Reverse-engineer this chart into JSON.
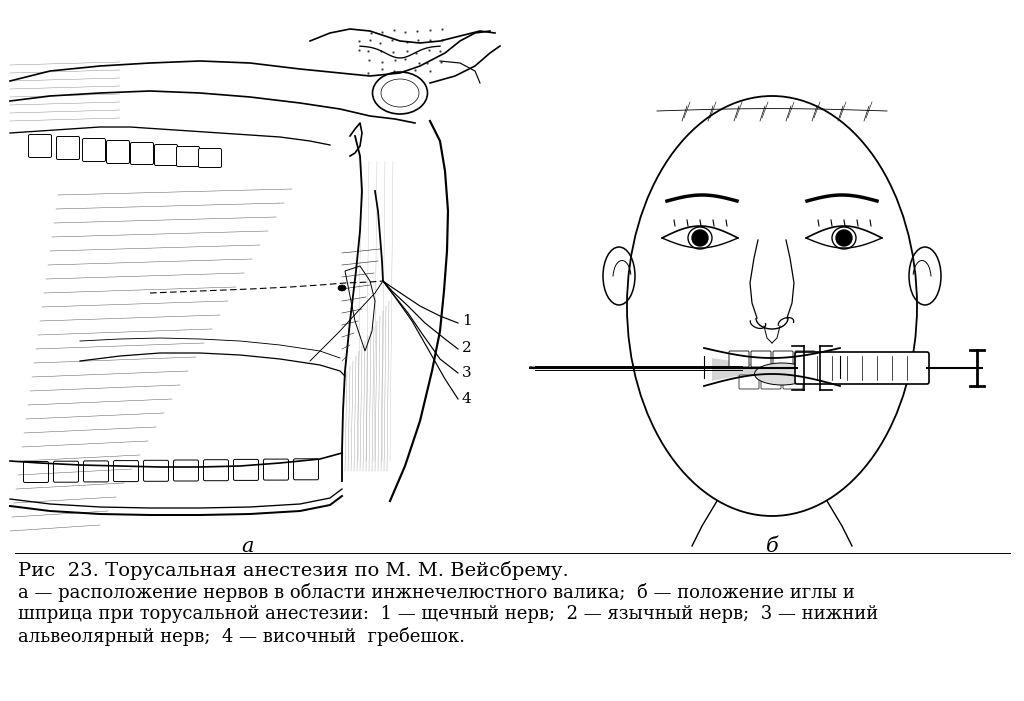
{
  "title_line": "Рис  23. Торусальная анестезия по М. М. Вейсбрему.",
  "caption_line1": "а — расположение нервов в области инжнечелюстного валика;  б — положение иглы и",
  "caption_line2": "шприца при торусальной анестезии:  1 — щечный нерв;  2 — язычный нерв;  3 — нижний",
  "caption_line3": "альвеолярный нерв;  4 — височный  гребешок.",
  "label_a": "а",
  "label_b": "б",
  "bg_color": "#ffffff",
  "text_color": "#000000",
  "title_fontsize": 14,
  "caption_fontsize": 13,
  "label_fontsize": 15
}
